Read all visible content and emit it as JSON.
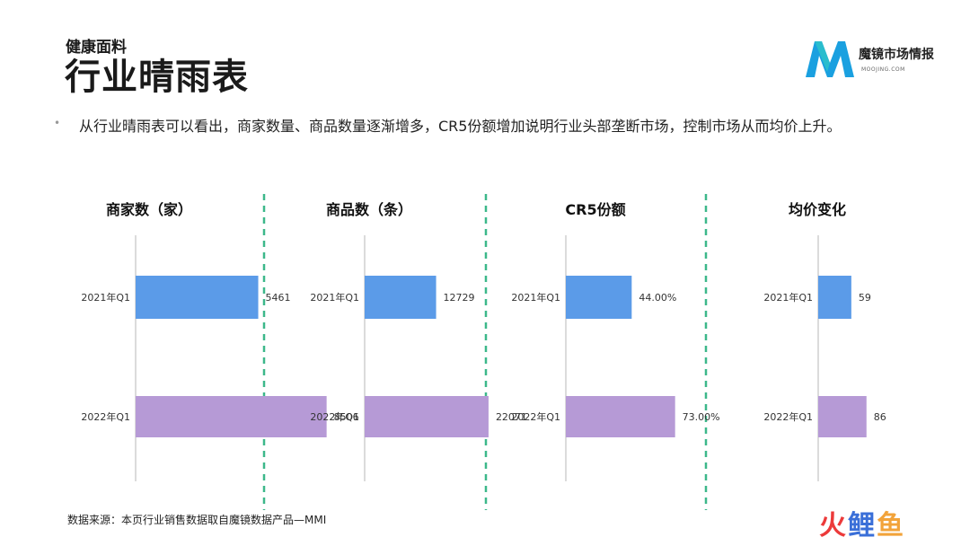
{
  "header": {
    "subtitle": "健康面料",
    "title": "行业晴雨表"
  },
  "logo": {
    "name": "魔镜市场情报",
    "sub": "MOOJING.COM",
    "colors": [
      "#1aa0e0",
      "#2ec4c8"
    ]
  },
  "bullet": {
    "text": "从行业晴雨表可以看出，商家数量、商品数量逐渐增多，CR5份额增加说明行业头部垄断市场，控制市场从而均价上升。"
  },
  "colors": {
    "bar_2021": "#5b9be8",
    "bar_2022": "#b69ad6",
    "divider": "#3cb88a"
  },
  "chart_data": [
    {
      "type": "bar",
      "orientation": "horizontal",
      "title": "商家数（家）",
      "categories": [
        "2021年Q1",
        "2022年Q1"
      ],
      "values": [
        5461,
        8506
      ],
      "labels": [
        "5461",
        "8506"
      ],
      "xlim": [
        0,
        10000
      ]
    },
    {
      "type": "bar",
      "orientation": "horizontal",
      "title": "商品数（条）",
      "categories": [
        "2021年Q1",
        "2022年Q1"
      ],
      "values": [
        12729,
        22071
      ],
      "labels": [
        "12729",
        "22071"
      ],
      "xlim": [
        0,
        40000
      ]
    },
    {
      "type": "bar",
      "orientation": "horizontal",
      "title": "CR5份额",
      "categories": [
        "2021年Q1",
        "2022年Q1"
      ],
      "values": [
        44.0,
        73.0
      ],
      "labels": [
        "44.00%",
        "73.00%"
      ],
      "xlim": [
        0,
        150
      ]
    },
    {
      "type": "bar",
      "orientation": "horizontal",
      "title": "均价变化",
      "categories": [
        "2021年Q1",
        "2022年Q1"
      ],
      "values": [
        59,
        86
      ],
      "labels": [
        "59",
        "86"
      ],
      "xlim": [
        0,
        400
      ]
    }
  ],
  "footer": {
    "source": "数据来源：本页行业销售数据取自魔镜数据产品—MMI"
  },
  "watermark": {
    "char1": "火",
    "char2": "鲤",
    "char3": "鱼"
  }
}
